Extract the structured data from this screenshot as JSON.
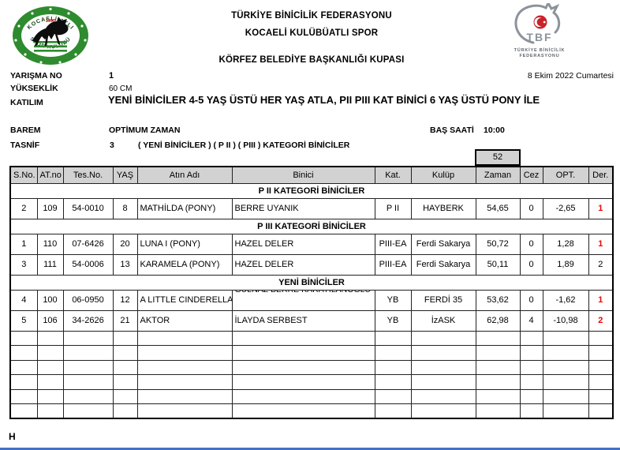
{
  "header": {
    "federation_title": "TÜRKİYE BİNİCİLİK FEDERASYONU",
    "club_title": "KOCAELİ KULÜBÜATLI SPOR",
    "cup_title": "KÖRFEZ BELEDİYE BAŞKANLIĞI KUPASI",
    "date": "8 Ekim 2022 Cumartesi"
  },
  "left_logo": {
    "top_arc_text": "KOCAELİ ATLI",
    "bottom_arc_text": "SPOR KULÜBÜ",
    "year": "1992",
    "ring_color": "#2e8b2e"
  },
  "right_logo": {
    "monogram": "TBF",
    "caption_line1": "TÜRKİYE BİNİCİLİK",
    "caption_line2": "FEDERASYONU",
    "accent_color": "#c8242b"
  },
  "meta": {
    "yarisma_label": "YARIŞMA  NO",
    "yarisma_value": "1",
    "yukseklik_label": "YÜKSEKLİK",
    "yukseklik_value": "60 CM",
    "katilim_label": "KATILIM",
    "katilim_value": "YENİ BİNİCİLER 4-5 YAŞ ÜSTÜ HER YAŞ ATLA, PII PIII KAT BİNİCİ 6 YAŞ ÜSTÜ PONY İLE",
    "barem_label": "BAREM",
    "barem_value": "OPTİMUM ZAMAN",
    "bas_saati_label": "BAŞ SAATİ",
    "bas_saati_value": "10:00",
    "tasnif_label": "TASNİF",
    "tasnif_value": "3",
    "tasnif_detail": "( YENİ BİNİCİLER ) ( P II ) ( PIII ) KATEGORİ BİNİCİLER"
  },
  "table": {
    "time_box": "52",
    "columns": [
      "S.No.",
      "AT.no",
      "Tes.No.",
      "YAŞ",
      "Atın Adı",
      "Binici",
      "Kat.",
      "Kulüp",
      "Zaman",
      "Cez",
      "OPT.",
      "Der."
    ],
    "sections": [
      {
        "title": "P II KATEGORİ BİNİCİLER",
        "rows": [
          {
            "sno": "2",
            "atno": "109",
            "tesno": "54-0010",
            "yas": "8",
            "atin_adi": "MATHİLDA (PONY)",
            "binici": "BERRE UYANIK",
            "kat": "P II",
            "kulup": "HAYBERK",
            "zaman": "54,65",
            "cez": "0",
            "opt": "-2,65",
            "der": "1",
            "der_red": true
          }
        ]
      },
      {
        "title": "P III KATEGORİ BİNİCİLER",
        "rows": [
          {
            "sno": "1",
            "atno": "110",
            "tesno": "07-6426",
            "yas": "20",
            "atin_adi": "LUNA I (PONY)",
            "binici": "HAZEL DELER",
            "kat": "PIII-EA",
            "kulup": "Ferdi Sakarya",
            "zaman": "50,72",
            "cez": "0",
            "opt": "1,28",
            "der": "1",
            "der_red": true
          },
          {
            "sno": "3",
            "atno": "111",
            "tesno": "54-0006",
            "yas": "13",
            "atin_adi": "KARAMELA (PONY)",
            "binici": "HAZEL DELER",
            "kat": "PIII-EA",
            "kulup": "Ferdi Sakarya",
            "zaman": "50,11",
            "cez": "0",
            "opt": "1,89",
            "der": "2",
            "der_red": false
          }
        ]
      },
      {
        "title": "YENİ BİNİCİLER",
        "rows": [
          {
            "sno": "4",
            "atno": "100",
            "tesno": "06-0950",
            "yas": "12",
            "atin_adi": "A LITTLE CINDERELLA",
            "binici": "GÜLNAZ BERRE KARAYILANOĞLU",
            "kat": "YB",
            "kulup": "FERDİ 35",
            "zaman": "53,62",
            "cez": "0",
            "opt": "-1,62",
            "der": "1",
            "der_red": true
          },
          {
            "sno": "5",
            "atno": "106",
            "tesno": "34-2626",
            "yas": "21",
            "atin_adi": "AKTOR",
            "binici": "İLAYDA SERBEST",
            "kat": "YB",
            "kulup": "İzASK",
            "zaman": "62,98",
            "cez": "4",
            "opt": "-10,98",
            "der": "2",
            "der_red": true
          }
        ]
      }
    ],
    "empty_row_count": 6
  },
  "footer": {
    "sheet_label": "H"
  }
}
